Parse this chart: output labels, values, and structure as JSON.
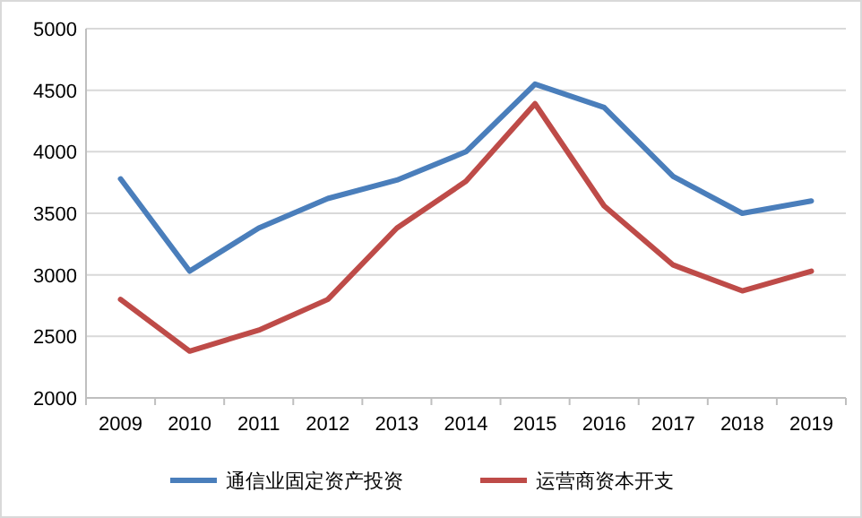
{
  "chart_data": {
    "type": "line",
    "categories": [
      "2009",
      "2010",
      "2011",
      "2012",
      "2013",
      "2014",
      "2015",
      "2016",
      "2017",
      "2018",
      "2019"
    ],
    "series": [
      {
        "name": "通信业固定资产投资",
        "color": "#4a7ebb",
        "values": [
          3780,
          3030,
          3380,
          3620,
          3770,
          4000,
          4550,
          4360,
          3800,
          3500,
          3600
        ]
      },
      {
        "name": "运营商资本开支",
        "color": "#be4b48",
        "values": [
          2800,
          2380,
          2550,
          2800,
          3380,
          3760,
          4390,
          3560,
          3080,
          2870,
          3030
        ]
      }
    ],
    "ylim": [
      2000,
      5000
    ],
    "yticks": [
      2000,
      2500,
      3000,
      3500,
      4000,
      4500,
      5000
    ],
    "grid": "y",
    "legend": "bottom",
    "marker": "none",
    "line_style": "solid"
  }
}
